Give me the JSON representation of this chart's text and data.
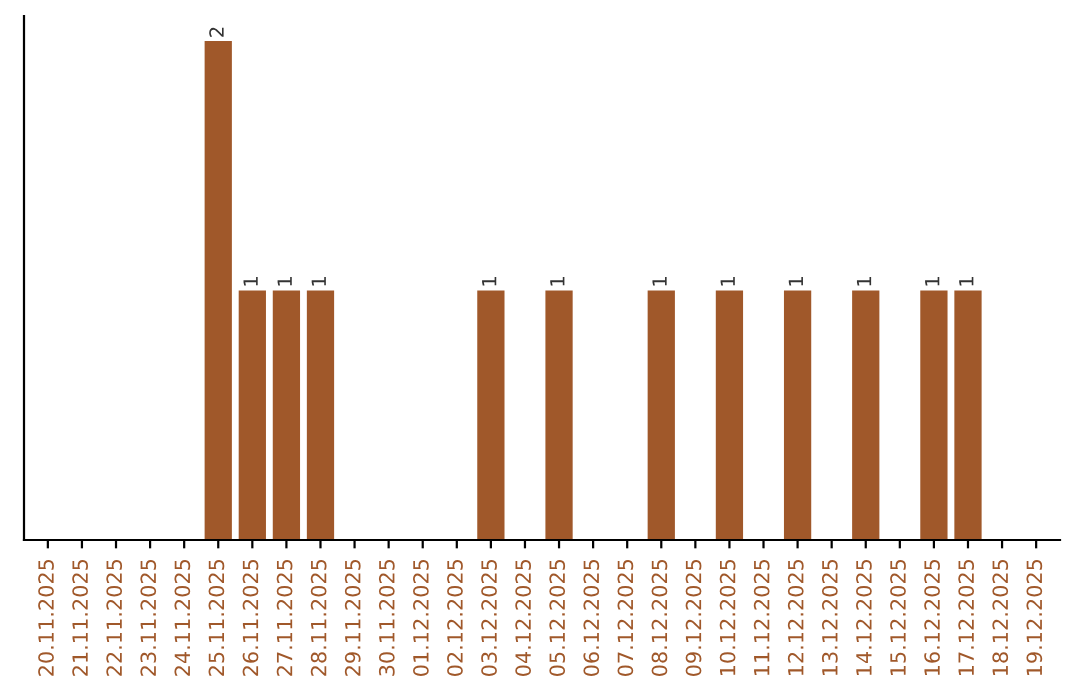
{
  "chart_data": {
    "type": "bar",
    "categories": [
      "20.11.2025",
      "21.11.2025",
      "22.11.2025",
      "23.11.2025",
      "24.11.2025",
      "25.11.2025",
      "26.11.2025",
      "27.11.2025",
      "28.11.2025",
      "29.11.2025",
      "30.11.2025",
      "01.12.2025",
      "02.12.2025",
      "03.12.2025",
      "04.12.2025",
      "05.12.2025",
      "06.12.2025",
      "07.12.2025",
      "08.12.2025",
      "09.12.2025",
      "10.12.2025",
      "11.12.2025",
      "12.12.2025",
      "13.12.2025",
      "14.12.2025",
      "15.12.2025",
      "16.12.2025",
      "17.12.2025",
      "18.12.2025",
      "19.12.2025"
    ],
    "values": [
      0,
      0,
      0,
      0,
      0,
      2,
      1,
      1,
      1,
      0,
      0,
      0,
      0,
      1,
      0,
      1,
      0,
      0,
      1,
      0,
      1,
      0,
      1,
      0,
      1,
      0,
      1,
      1,
      0,
      0
    ],
    "value_labels": [
      null,
      null,
      null,
      null,
      null,
      "2",
      "1",
      "1",
      "1",
      null,
      null,
      null,
      null,
      "1",
      null,
      "1",
      null,
      null,
      "1",
      null,
      "1",
      null,
      "1",
      null,
      "1",
      null,
      "1",
      "1",
      null,
      null
    ],
    "color": "#a0582a",
    "ylim": [
      0,
      2.1
    ],
    "tick_labels": "x",
    "grid": false,
    "legend": false
  }
}
